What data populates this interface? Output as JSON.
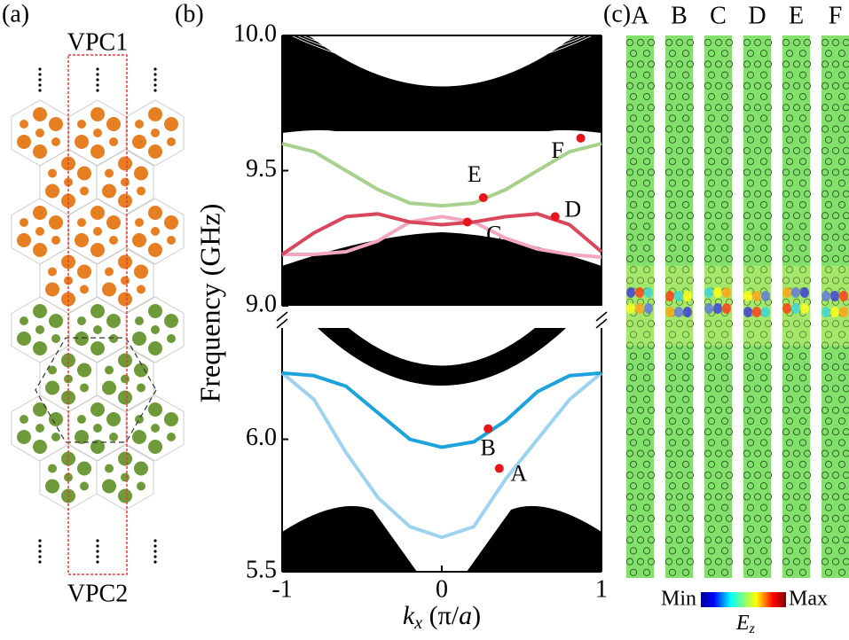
{
  "panels": {
    "a": {
      "label": "(a)",
      "top": "VPC1",
      "bottom": "VPC2"
    },
    "b": {
      "label": "(b)"
    },
    "c": {
      "label": "(c)",
      "columns": [
        "A",
        "B",
        "C",
        "D",
        "E",
        "F"
      ],
      "colorbar": {
        "min": "Min",
        "max": "Max",
        "quantity": "E",
        "quantity_sub": "z"
      }
    }
  },
  "chart_data": [
    {
      "type": "line",
      "ylabel": "Frequency (GHz)",
      "xlim": [
        -1,
        1
      ],
      "ylim": [
        9,
        10
      ],
      "yticks": [
        {
          "value": 9,
          "label": "9.0"
        },
        9.5,
        {
          "value": 10,
          "label": "10.0"
        }
      ],
      "x": [
        -1,
        -0.8,
        -0.6,
        -0.4,
        -0.2,
        0,
        0.2,
        0.4,
        0.6,
        0.8,
        1
      ],
      "series": [
        {
          "color": "#a9d18e",
          "values": [
            9.6,
            9.57,
            9.5,
            9.43,
            9.38,
            9.37,
            9.38,
            9.43,
            9.5,
            9.57,
            9.6
          ]
        },
        {
          "color": "#f2a7bf",
          "values": [
            9.19,
            9.19,
            9.2,
            9.24,
            9.31,
            9.33,
            9.31,
            9.25,
            9.21,
            9.19,
            9.18
          ]
        },
        {
          "color": "#d8475b",
          "values": [
            9.19,
            9.27,
            9.33,
            9.34,
            9.31,
            9.3,
            9.31,
            9.33,
            9.34,
            9.3,
            9.2
          ]
        }
      ],
      "points": {
        "color": "#e8141c",
        "labels": [
          "C",
          "D",
          "E",
          "F"
        ],
        "x": [
          0.16,
          0.71,
          0.26,
          0.87
        ],
        "values": [
          9.31,
          9.33,
          9.4,
          9.62
        ]
      }
    },
    {
      "type": "line",
      "xlabel": [
        "k",
        "x",
        " (π/",
        "a",
        ")"
      ],
      "xlim": [
        -1,
        1
      ],
      "xticks": [
        -1,
        0,
        1
      ],
      "ylim": [
        5.5,
        6.42
      ],
      "yticks": [
        5.5,
        {
          "value": 6,
          "label": "6.0"
        }
      ],
      "x": [
        -1,
        -0.8,
        -0.6,
        -0.4,
        -0.2,
        0,
        0.2,
        0.4,
        0.6,
        0.8,
        1
      ],
      "series": [
        {
          "color": "#9dd3ef",
          "values": [
            6.25,
            6.15,
            5.95,
            5.78,
            5.67,
            5.63,
            5.67,
            5.85,
            6.0,
            6.15,
            6.25
          ]
        },
        {
          "color": "#1ca3dc",
          "values": [
            6.25,
            6.24,
            6.2,
            6.1,
            6.0,
            5.97,
            5.99,
            6.07,
            6.18,
            6.24,
            6.25
          ]
        }
      ],
      "points": {
        "color": "#e8141c",
        "labels": [
          "A",
          "B"
        ],
        "x": [
          0.36,
          0.29
        ],
        "values": [
          5.89,
          6.04
        ]
      }
    }
  ]
}
